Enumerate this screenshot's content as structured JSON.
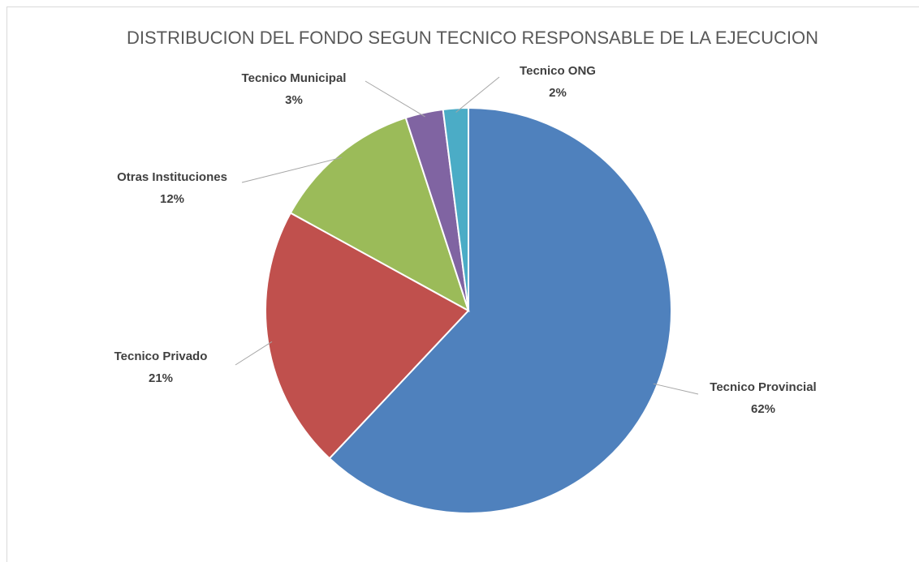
{
  "chart_data": {
    "type": "pie",
    "title": "DISTRIBUCION DEL FONDO SEGUN TECNICO RESPONSABLE DE LA EJECUCION",
    "categories": [
      "Tecnico Provincial",
      "Tecnico Privado",
      "Otras Instituciones",
      "Tecnico Municipal",
      "Tecnico ONG"
    ],
    "values": [
      62,
      21,
      12,
      3,
      2
    ],
    "value_labels": [
      "62%",
      "21%",
      "12%",
      "3%",
      "2%"
    ],
    "colors": [
      "#4f81bd",
      "#c0504d",
      "#9bbb59",
      "#8064a2",
      "#4bacc6"
    ]
  }
}
